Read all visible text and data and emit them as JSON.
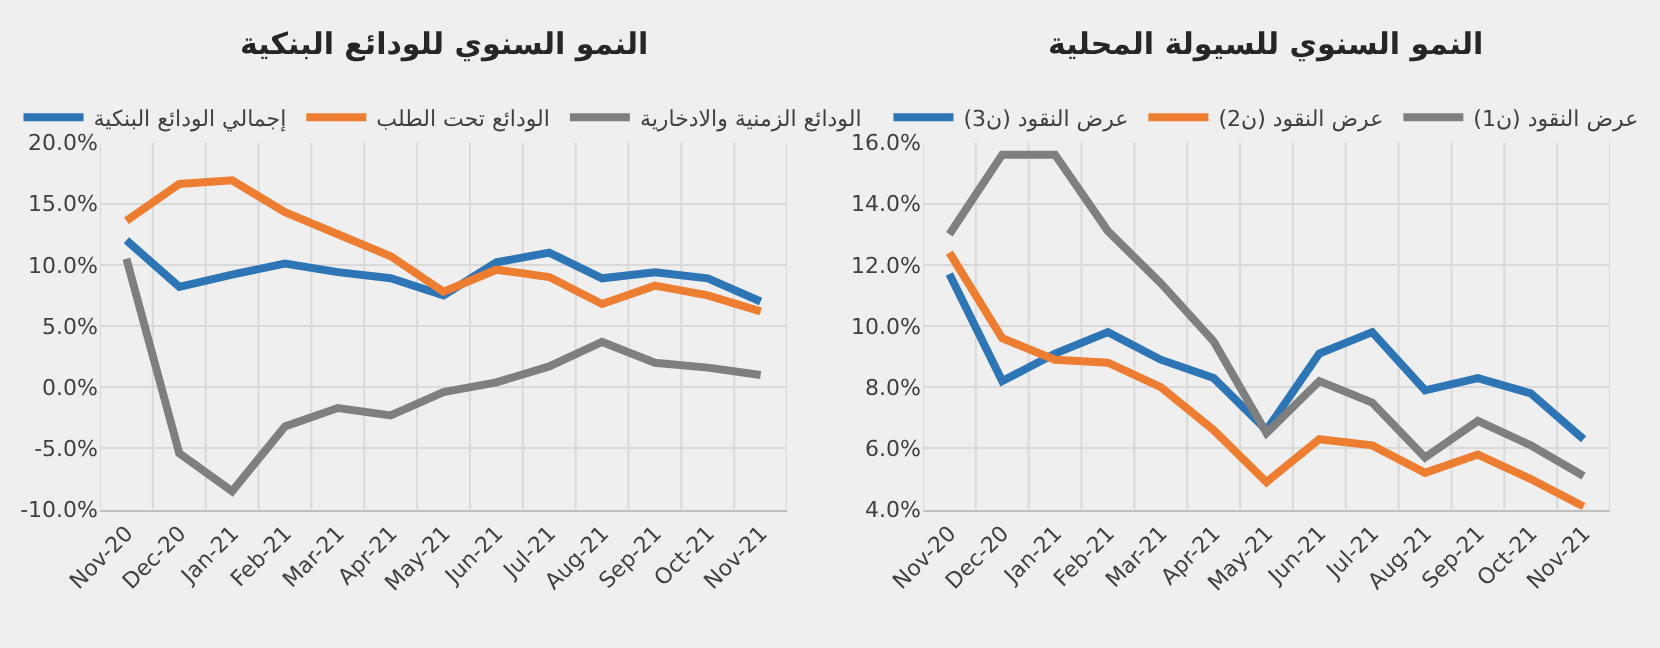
{
  "chart_data": [
    {
      "type": "line",
      "title": "النمو السنوي للودائع البنكية",
      "categories": [
        "Nov-20",
        "Dec-20",
        "Jan-21",
        "Feb-21",
        "Mar-21",
        "Apr-21",
        "May-21",
        "Jun-21",
        "Jul-21",
        "Aug-21",
        "Sep-21",
        "Oct-21",
        "Nov-21"
      ],
      "series": [
        {
          "name": "إجمالي الودائع البنكية",
          "color": "#2e75b6",
          "values": [
            12.0,
            8.2,
            9.2,
            10.1,
            9.4,
            8.9,
            7.5,
            10.2,
            11.0,
            8.9,
            9.4,
            8.9,
            7.0
          ]
        },
        {
          "name": "الودائع تحت الطلب",
          "color": "#ed7d31",
          "values": [
            13.6,
            16.6,
            16.9,
            14.3,
            12.5,
            10.7,
            7.8,
            9.6,
            9.0,
            6.8,
            8.3,
            7.5,
            6.2
          ]
        },
        {
          "name": "الودائع الزمنية والادخارية",
          "color": "#7f7f7f",
          "values": [
            10.5,
            -5.4,
            -8.5,
            -3.2,
            -1.7,
            -2.3,
            -0.4,
            0.4,
            1.7,
            3.7,
            2.0,
            1.6,
            1.0
          ]
        }
      ],
      "ylim": [
        -10,
        20
      ],
      "yticks": [
        {
          "value": -10,
          "label": "-10.0%"
        },
        {
          "value": -5,
          "label": "-5.0%"
        },
        {
          "value": 0,
          "label": "0.0%"
        },
        {
          "value": 5,
          "label": "5.0%"
        },
        {
          "value": 10,
          "label": "10.0%"
        },
        {
          "value": 15,
          "label": "15.0%"
        },
        {
          "value": 20,
          "label": "20.0%"
        }
      ],
      "grid": true,
      "legend": "top",
      "marker": "none",
      "line_style": "solid"
    },
    {
      "type": "line",
      "title": "النمو السنوي للسيولة المحلية",
      "categories": [
        "Nov-20",
        "Dec-20",
        "Jan-21",
        "Feb-21",
        "Mar-21",
        "Apr-21",
        "May-21",
        "Jun-21",
        "Jul-21",
        "Aug-21",
        "Sep-21",
        "Oct-21",
        "Nov-21"
      ],
      "series": [
        {
          "name": "عرض النقود (ن3)",
          "color": "#2e75b6",
          "values": [
            11.7,
            8.2,
            9.1,
            9.8,
            8.9,
            8.3,
            6.6,
            9.1,
            9.8,
            7.9,
            8.3,
            7.8,
            6.3
          ]
        },
        {
          "name": "عرض النقود (ن2)",
          "color": "#ed7d31",
          "values": [
            12.4,
            9.6,
            8.9,
            8.8,
            8.0,
            6.6,
            4.9,
            6.3,
            6.1,
            5.2,
            5.8,
            5.0,
            4.1
          ]
        },
        {
          "name": "عرض النقود (ن1)",
          "color": "#7f7f7f",
          "values": [
            13.0,
            15.6,
            15.6,
            13.1,
            11.4,
            9.5,
            6.5,
            8.2,
            7.5,
            5.7,
            6.9,
            6.1,
            5.1
          ]
        }
      ],
      "ylim": [
        4,
        16
      ],
      "yticks": [
        {
          "value": 4,
          "label": "4.0%"
        },
        {
          "value": 6,
          "label": "6.0%"
        },
        {
          "value": 8,
          "label": "8.0%"
        },
        {
          "value": 10,
          "label": "10.0%"
        },
        {
          "value": 12,
          "label": "12.0%"
        },
        {
          "value": 14,
          "label": "14.0%"
        },
        {
          "value": 16,
          "label": "16.0%"
        }
      ],
      "grid": true,
      "legend": "top",
      "marker": "none",
      "line_style": "solid"
    }
  ]
}
